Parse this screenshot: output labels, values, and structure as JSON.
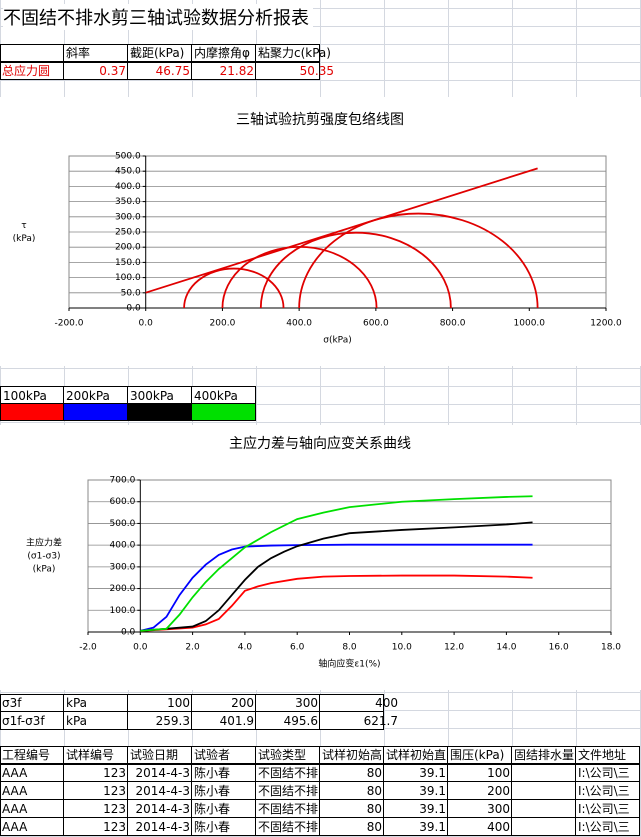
{
  "title": "不固结不排水剪三轴试验数据分析报表",
  "summary": {
    "header": [
      null,
      "斜率",
      "截距(kPa)",
      "内摩擦角φ",
      "粘聚力c(kPa)"
    ],
    "rows": [
      [
        "总应力圆",
        0.37,
        46.75,
        21.82,
        50.35
      ]
    ]
  },
  "chart_data": [
    {
      "type": "mohr",
      "title": "三轴试验抗剪强度包络线图",
      "xlabel": "σ(kPa)",
      "ylabel": [
        "τ",
        "(kPa)"
      ],
      "color": "#e00000",
      "circles": {
        "sigma3": [
          100,
          200,
          300,
          400
        ],
        "sigma1": [
          359.3,
          601.9,
          795.6,
          1021.7
        ]
      },
      "envelope": {
        "x": [
          0,
          1021.7
        ],
        "values": [
          50.35,
          459.4
        ]
      },
      "xlim": [
        -200,
        1200
      ],
      "xticks": [
        {
          "value": -200,
          "label": "-200.0"
        },
        {
          "value": 0,
          "label": "0.0"
        },
        {
          "value": 200,
          "label": "200.0"
        },
        {
          "value": 400,
          "label": "400.0"
        },
        {
          "value": 600,
          "label": "600.0"
        },
        {
          "value": 800,
          "label": "800.0"
        },
        {
          "value": 1000,
          "label": "1000.0"
        },
        {
          "value": 1200,
          "label": "1200.0"
        }
      ],
      "ylim": [
        0,
        500
      ],
      "yticks": [
        {
          "value": 0,
          "label": "0.0"
        },
        {
          "value": 50,
          "label": "50.0"
        },
        {
          "value": 100,
          "label": "100.0"
        },
        {
          "value": 150,
          "label": "150.0"
        },
        {
          "value": 200,
          "label": "200.0"
        },
        {
          "value": 250,
          "label": "250.0"
        },
        {
          "value": 300,
          "label": "300.0"
        },
        {
          "value": 350,
          "label": "350.0"
        },
        {
          "value": 400,
          "label": "400.0"
        },
        {
          "value": 450,
          "label": "450.0"
        },
        {
          "value": 500,
          "label": "500.0"
        }
      ],
      "grid": true
    },
    {
      "type": "line",
      "title": "主应力差与轴向应变关系曲线",
      "xlabel": "轴向应变ε1(%)",
      "ylabel": [
        "主应力差",
        "(σ1-σ3)",
        "(kPa)"
      ],
      "series": [
        {
          "name": "100kPa",
          "color": "#ff0000",
          "x": [
            0,
            1,
            2,
            2.5,
            3,
            3.5,
            4,
            4.5,
            5,
            6,
            7,
            8,
            10,
            12,
            14,
            15
          ],
          "values": [
            5,
            12,
            20,
            35,
            60,
            120,
            190,
            210,
            225,
            245,
            255,
            258,
            260,
            260,
            255,
            250
          ]
        },
        {
          "name": "200kPa",
          "color": "#0000ff",
          "x": [
            0,
            0.5,
            1,
            1.5,
            2,
            2.5,
            3,
            3.5,
            4,
            5,
            6,
            8,
            10,
            12,
            15
          ],
          "values": [
            5,
            20,
            70,
            170,
            250,
            310,
            355,
            380,
            393,
            398,
            400,
            402,
            402,
            402,
            402
          ]
        },
        {
          "name": "300kPa",
          "color": "#000000",
          "x": [
            0,
            1,
            2,
            2.5,
            3,
            3.5,
            4,
            4.5,
            5,
            5.5,
            6,
            7,
            8,
            10,
            12,
            14,
            15
          ],
          "values": [
            5,
            15,
            25,
            50,
            100,
            170,
            240,
            300,
            340,
            370,
            395,
            430,
            455,
            470,
            482,
            495,
            505
          ]
        },
        {
          "name": "400kPa",
          "color": "#00e000",
          "x": [
            0,
            1,
            1.5,
            2,
            2.5,
            3,
            3.5,
            4,
            5,
            6,
            7,
            8,
            10,
            12,
            14,
            15
          ],
          "values": [
            5,
            15,
            80,
            160,
            230,
            290,
            340,
            390,
            460,
            520,
            550,
            575,
            600,
            612,
            622,
            625
          ]
        }
      ],
      "xlim": [
        -2,
        18
      ],
      "xticks": [
        {
          "value": -2,
          "label": "-2.0"
        },
        {
          "value": 0,
          "label": "0.0"
        },
        {
          "value": 2,
          "label": "2.0"
        },
        {
          "value": 4,
          "label": "4.0"
        },
        {
          "value": 6,
          "label": "6.0"
        },
        {
          "value": 8,
          "label": "8.0"
        },
        {
          "value": 10,
          "label": "10.0"
        },
        {
          "value": 12,
          "label": "12.0"
        },
        {
          "value": 14,
          "label": "14.0"
        },
        {
          "value": 16,
          "label": "16.0"
        },
        {
          "value": 18,
          "label": "18.0"
        }
      ],
      "ylim": [
        0,
        700
      ],
      "yticks": [
        {
          "value": 0,
          "label": "0.0"
        },
        {
          "value": 100,
          "label": "100.0"
        },
        {
          "value": 200,
          "label": "200.0"
        },
        {
          "value": 300,
          "label": "300.0"
        },
        {
          "value": 400,
          "label": "400.0"
        },
        {
          "value": 500,
          "label": "500.0"
        },
        {
          "value": 600,
          "label": "600.0"
        },
        {
          "value": 700,
          "label": "700.0"
        }
      ],
      "grid": true
    }
  ],
  "stress_table": {
    "rows": [
      [
        "σ3f",
        "kPa",
        100,
        200,
        300,
        400
      ],
      [
        "σ1f-σ3f",
        "kPa",
        259.3,
        401.9,
        495.6,
        621.7
      ]
    ]
  },
  "records": {
    "header": [
      "工程编号",
      "试样编号",
      "试验日期",
      "试验者",
      "试验类型",
      "试样初始高",
      "试样初始直",
      "围压(kPa)",
      "固结排水量",
      "文件地址"
    ],
    "rows": [
      [
        "AAA",
        123,
        "2014-4-3",
        "陈小春",
        "不固结不排",
        80,
        39.1,
        100,
        null,
        "I:\\公司\\三"
      ],
      [
        "AAA",
        123,
        "2014-4-3",
        "陈小春",
        "不固结不排",
        80,
        39.1,
        200,
        null,
        "I:\\公司\\三"
      ],
      [
        "AAA",
        123,
        "2014-4-3",
        "陈小春",
        "不固结不排",
        80,
        39.1,
        300,
        null,
        "I:\\公司\\三"
      ],
      [
        "AAA",
        123,
        "2014-4-3",
        "陈小春",
        "不固结不排",
        80,
        39.1,
        400,
        null,
        "I:\\公司\\三"
      ]
    ]
  }
}
